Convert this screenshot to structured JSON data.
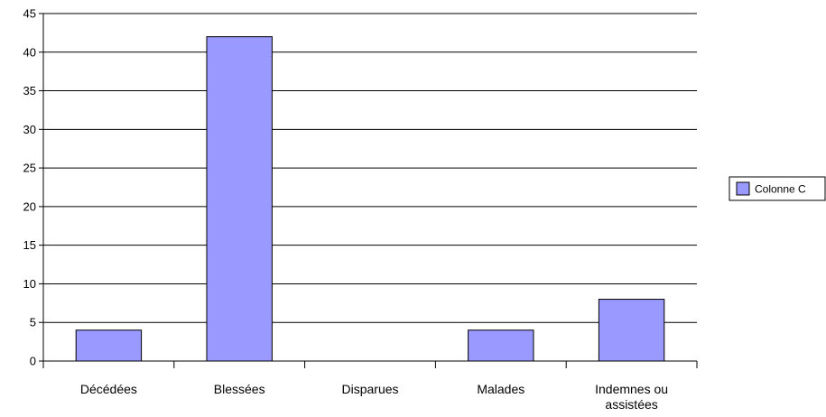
{
  "chart_data": {
    "type": "bar",
    "categories": [
      "Décédées",
      "Blessées",
      "Disparues",
      "Malades",
      "Indemnes ou assistées"
    ],
    "series": [
      {
        "name": "Colonne C",
        "values": [
          4,
          42,
          0,
          4,
          8
        ],
        "color": "#9999ff"
      }
    ],
    "ylim": [
      0,
      45
    ],
    "ytick_step": 5,
    "grid": true,
    "legend": "right",
    "bar_color": "#9999ff",
    "bar_edge_color": "#000000",
    "grid_color": "#000000"
  }
}
